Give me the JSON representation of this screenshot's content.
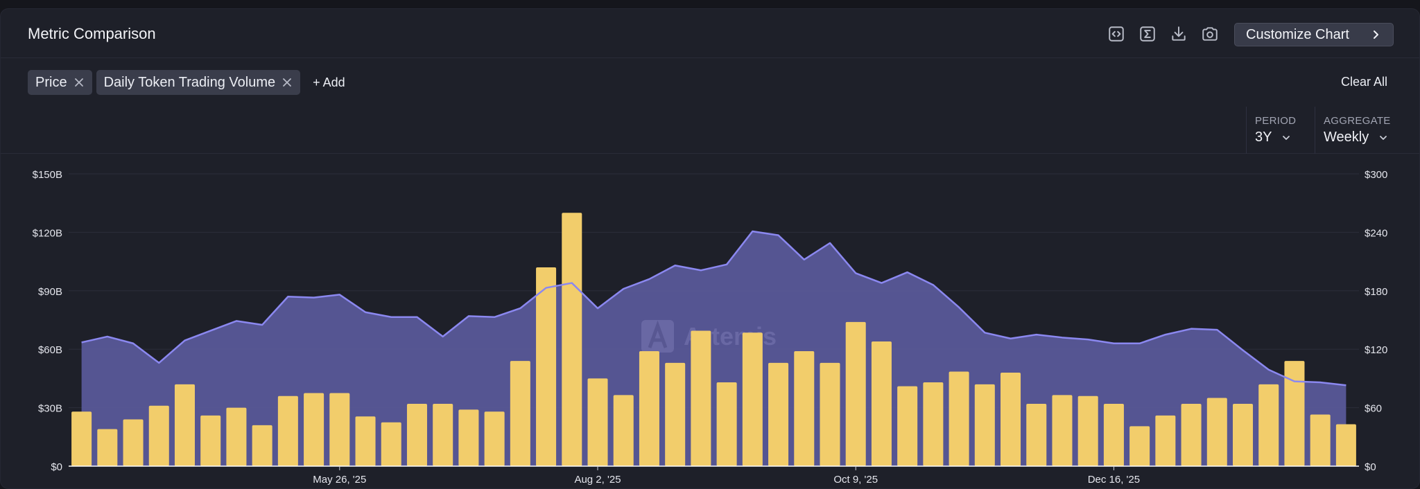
{
  "header": {
    "title": "Metric Comparison",
    "customize_label": "Customize Chart",
    "icons": [
      "embed-icon",
      "formula-icon",
      "download-icon",
      "camera-icon"
    ]
  },
  "chips": [
    {
      "label": "Price"
    },
    {
      "label": "Daily Token Trading Volume"
    }
  ],
  "add_label": "+ Add",
  "clear_all_label": "Clear All",
  "controls": {
    "period": {
      "label": "PERIOD",
      "value": "3Y"
    },
    "aggregate": {
      "label": "AGGREGATE",
      "value": "Weekly"
    }
  },
  "watermark": "Artemis",
  "colors": {
    "background": "#1e2029",
    "bar": "#f2cd6b",
    "area_fill": "#585898",
    "line": "#8b88f0",
    "grid": "#2c2e3a"
  },
  "chart_data": {
    "type": "bar",
    "series": [
      {
        "name": "Daily Token Trading Volume",
        "type": "bar",
        "axis": "left",
        "values": [
          28,
          19,
          24,
          31,
          42,
          26,
          30,
          21,
          36,
          37.5,
          37.5,
          25.5,
          22.5,
          32,
          32,
          29,
          28,
          54,
          102,
          130,
          45,
          36.5,
          59,
          53,
          69.5,
          43,
          68.5,
          53,
          59,
          53,
          74,
          64,
          41,
          43,
          48.5,
          42,
          48,
          32,
          36.5,
          36,
          32,
          20.5,
          26,
          32,
          35,
          32,
          42,
          54,
          26.5,
          21.5
        ]
      },
      {
        "name": "Price",
        "type": "area",
        "axis": "right",
        "values": [
          127,
          133,
          126,
          106,
          129,
          139,
          149,
          145,
          174,
          173,
          176,
          158,
          153,
          153,
          133,
          154,
          153,
          162,
          183,
          188,
          162,
          182,
          192,
          206,
          201,
          207,
          241,
          237,
          212,
          229,
          198,
          188,
          199,
          186,
          163,
          137,
          131,
          135,
          132,
          130,
          126,
          126,
          135,
          141,
          140,
          119,
          99,
          87,
          86,
          83
        ]
      }
    ],
    "x_tick_labels": [
      "May 26, '25",
      "Aug 2, '25",
      "Oct 9, '25",
      "Dec 16, '25"
    ],
    "y_left": {
      "ticks": [
        "$0",
        "$30B",
        "$60B",
        "$90B",
        "$120B",
        "$150B"
      ],
      "range": [
        0,
        150
      ]
    },
    "y_right": {
      "ticks": [
        "$0",
        "$60",
        "$120",
        "$180",
        "$240",
        "$300"
      ],
      "range": [
        0,
        300
      ]
    },
    "grid": true
  }
}
